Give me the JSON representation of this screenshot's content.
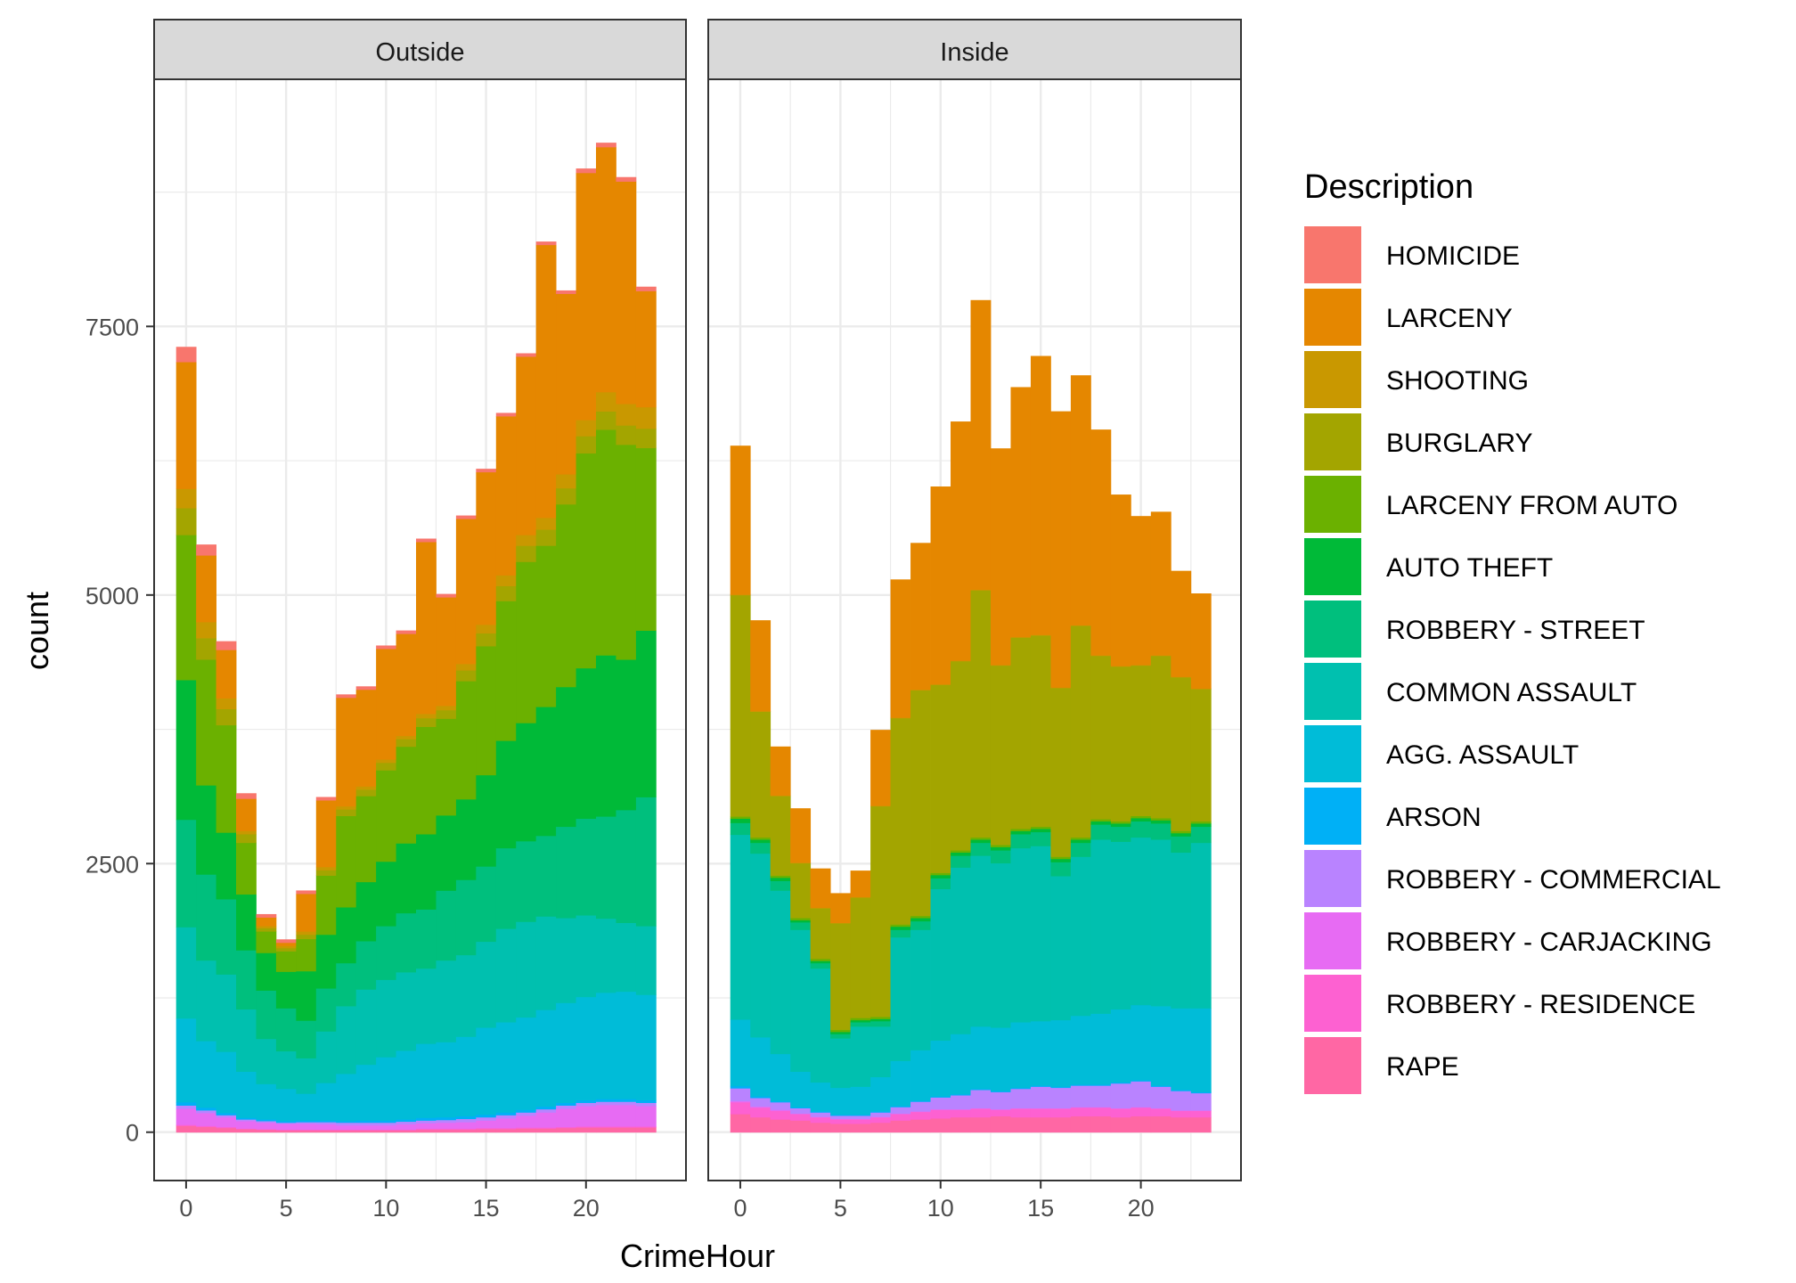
{
  "chart_data": {
    "type": "bar",
    "stacked": true,
    "facets": [
      "Outside",
      "Inside"
    ],
    "xlabel": "CrimeHour",
    "ylabel": "count",
    "x": [
      0,
      1,
      2,
      3,
      4,
      5,
      6,
      7,
      8,
      9,
      10,
      11,
      12,
      13,
      14,
      15,
      16,
      17,
      18,
      19,
      20,
      21,
      22,
      23
    ],
    "xlim": [
      -1.6,
      25.0
    ],
    "ylim": [
      -450,
      9800
    ],
    "x_ticks": [
      0,
      5,
      10,
      15,
      20
    ],
    "y_ticks": [
      0,
      2500,
      5000,
      7500
    ],
    "grid": true,
    "legend": {
      "title": "Description",
      "position": "right",
      "entries": [
        {
          "name": "HOMICIDE",
          "color": "#F8766D"
        },
        {
          "name": "LARCENY",
          "color": "#E58700"
        },
        {
          "name": "SHOOTING",
          "color": "#C99800"
        },
        {
          "name": "BURGLARY",
          "color": "#A3A500"
        },
        {
          "name": "LARCENY FROM AUTO",
          "color": "#6BB100"
        },
        {
          "name": "AUTO THEFT",
          "color": "#00BA38"
        },
        {
          "name": "ROBBERY - STREET",
          "color": "#00BF7D"
        },
        {
          "name": "COMMON ASSAULT",
          "color": "#00C0AF"
        },
        {
          "name": "AGG. ASSAULT",
          "color": "#00BCD8"
        },
        {
          "name": "ARSON",
          "color": "#00B0F6"
        },
        {
          "name": "ROBBERY - COMMERCIAL",
          "color": "#B983FF"
        },
        {
          "name": "ROBBERY - CARJACKING",
          "color": "#E76BF3"
        },
        {
          "name": "ROBBERY - RESIDENCE",
          "color": "#FD61D1"
        },
        {
          "name": "RAPE",
          "color": "#FF67A4"
        }
      ]
    },
    "panels": [
      {
        "name": "Outside",
        "series": {
          "RAPE": [
            60,
            50,
            40,
            30,
            25,
            20,
            20,
            20,
            20,
            20,
            20,
            20,
            25,
            25,
            25,
            30,
            30,
            35,
            35,
            40,
            45,
            45,
            45,
            45
          ],
          "ROBBERY - RESIDENCE": [
            10,
            10,
            10,
            5,
            5,
            5,
            5,
            5,
            5,
            5,
            5,
            5,
            10,
            10,
            10,
            10,
            10,
            10,
            10,
            10,
            10,
            10,
            10,
            10
          ],
          "ROBBERY - CARJACKING": [
            150,
            120,
            90,
            70,
            60,
            55,
            55,
            50,
            40,
            40,
            40,
            50,
            50,
            55,
            60,
            70,
            90,
            110,
            140,
            170,
            190,
            200,
            200,
            190
          ],
          "ROBBERY - COMMERCIAL": [
            30,
            25,
            20,
            15,
            15,
            10,
            15,
            20,
            25,
            25,
            25,
            25,
            25,
            25,
            30,
            30,
            30,
            30,
            30,
            30,
            30,
            30,
            30,
            30
          ],
          "ARSON": [
            30,
            25,
            20,
            15,
            15,
            15,
            15,
            15,
            15,
            20,
            20,
            20,
            25,
            25,
            25,
            25,
            25,
            25,
            25,
            25,
            25,
            25,
            25,
            25
          ],
          "AGG. ASSAULT": [
            780,
            620,
            570,
            430,
            330,
            300,
            250,
            350,
            440,
            520,
            590,
            640,
            690,
            700,
            740,
            810,
            840,
            860,
            900,
            930,
            960,
            990,
            1000,
            980
          ],
          "COMMON ASSAULT": [
            850,
            750,
            720,
            580,
            420,
            350,
            330,
            480,
            630,
            700,
            720,
            730,
            700,
            760,
            760,
            800,
            870,
            890,
            870,
            790,
            760,
            690,
            640,
            640
          ],
          "ROBBERY - STREET": [
            1000,
            800,
            700,
            550,
            450,
            400,
            350,
            400,
            400,
            450,
            500,
            550,
            550,
            650,
            700,
            700,
            750,
            750,
            750,
            850,
            900,
            950,
            1050,
            1200
          ],
          "AUTO THEFT": [
            1300,
            830,
            620,
            520,
            350,
            340,
            460,
            500,
            520,
            550,
            600,
            650,
            700,
            700,
            750,
            850,
            1000,
            1100,
            1200,
            1300,
            1400,
            1500,
            1400,
            1550
          ],
          "LARCENY FROM AUTO": [
            1350,
            1170,
            1000,
            480,
            200,
            190,
            300,
            550,
            850,
            800,
            850,
            900,
            1000,
            900,
            1100,
            1200,
            1300,
            1500,
            1500,
            1700,
            2000,
            2100,
            2000,
            1700
          ],
          "BURGLARY": [
            250,
            200,
            150,
            80,
            30,
            30,
            40,
            50,
            60,
            60,
            70,
            70,
            80,
            80,
            100,
            120,
            140,
            150,
            150,
            150,
            160,
            170,
            180,
            180
          ],
          "SHOOTING": [
            180,
            150,
            100,
            30,
            20,
            20,
            30,
            30,
            30,
            30,
            30,
            30,
            40,
            40,
            60,
            80,
            100,
            100,
            110,
            130,
            150,
            180,
            200,
            200
          ],
          "LARCENY": [
            1180,
            620,
            450,
            300,
            80,
            30,
            350,
            620,
            1010,
            900,
            1030,
            950,
            1600,
            1010,
            1350,
            1420,
            1480,
            1660,
            2540,
            1680,
            2300,
            2280,
            2070,
            1080
          ],
          "HOMICIDE": [
            140,
            100,
            80,
            50,
            30,
            30,
            30,
            30,
            30,
            30,
            30,
            30,
            30,
            30,
            30,
            30,
            30,
            30,
            30,
            30,
            40,
            40,
            40,
            40
          ]
        }
      },
      {
        "name": "Inside",
        "series": {
          "RAPE": [
            170,
            140,
            120,
            110,
            90,
            80,
            80,
            90,
            110,
            120,
            130,
            140,
            140,
            150,
            140,
            140,
            140,
            150,
            150,
            140,
            150,
            150,
            140,
            140
          ],
          "ROBBERY - RESIDENCE": [
            110,
            90,
            80,
            60,
            50,
            40,
            40,
            50,
            60,
            70,
            80,
            70,
            80,
            60,
            80,
            80,
            80,
            80,
            80,
            80,
            80,
            70,
            60,
            60
          ],
          "ROBBERY - CARJACKING": [
            10,
            10,
            10,
            5,
            5,
            5,
            5,
            5,
            5,
            5,
            5,
            5,
            5,
            5,
            5,
            5,
            5,
            5,
            5,
            5,
            5,
            5,
            5,
            5
          ],
          "ROBBERY - COMMERCIAL": [
            120,
            80,
            70,
            50,
            40,
            30,
            30,
            40,
            60,
            90,
            110,
            130,
            170,
            160,
            180,
            200,
            190,
            200,
            200,
            230,
            240,
            200,
            180,
            160
          ],
          "ARSON": [
            20,
            15,
            10,
            10,
            10,
            10,
            10,
            10,
            10,
            10,
            10,
            10,
            10,
            10,
            10,
            10,
            10,
            10,
            10,
            10,
            10,
            10,
            10,
            10
          ],
          "AGG. ASSAULT": [
            620,
            550,
            440,
            330,
            270,
            250,
            260,
            320,
            420,
            470,
            520,
            560,
            580,
            590,
            610,
            600,
            620,
            640,
            660,
            680,
            700,
            740,
            760,
            780
          ],
          "COMMON ASSAULT": [
            1720,
            1710,
            1520,
            1320,
            1060,
            460,
            560,
            470,
            1150,
            1120,
            1410,
            1550,
            1590,
            1530,
            1620,
            1630,
            1340,
            1480,
            1620,
            1560,
            1560,
            1550,
            1450,
            1540
          ],
          "ROBBERY - STREET": [
            110,
            100,
            90,
            70,
            50,
            40,
            40,
            50,
            70,
            80,
            100,
            110,
            120,
            120,
            130,
            130,
            130,
            130,
            140,
            140,
            150,
            150,
            150,
            150
          ],
          "AUTO THEFT": [
            40,
            30,
            30,
            20,
            20,
            20,
            20,
            20,
            30,
            30,
            30,
            30,
            30,
            30,
            30,
            30,
            30,
            30,
            30,
            30,
            30,
            30,
            30,
            30
          ],
          "LARCENY FROM AUTO": [
            20,
            20,
            20,
            20,
            20,
            20,
            20,
            20,
            20,
            20,
            20,
            20,
            20,
            20,
            20,
            20,
            20,
            20,
            20,
            20,
            20,
            20,
            20,
            20
          ],
          "BURGLARY": [
            2060,
            1170,
            740,
            510,
            470,
            990,
            1120,
            1960,
            1920,
            2100,
            1750,
            1760,
            2300,
            1670,
            1780,
            1780,
            1570,
            1970,
            1520,
            1440,
            1400,
            1510,
            1430,
            1230
          ],
          "SHOOTING": [
            5,
            5,
            5,
            5,
            5,
            5,
            5,
            5,
            5,
            5,
            5,
            5,
            5,
            5,
            5,
            5,
            5,
            5,
            5,
            5,
            5,
            5,
            5,
            5
          ],
          "LARCENY": [
            1385,
            845,
            455,
            505,
            365,
            275,
            245,
            705,
            1285,
            1365,
            1840,
            2225,
            2695,
            2015,
            2325,
            2595,
            2570,
            2325,
            2100,
            1595,
            1385,
            1335,
            985,
            885
          ],
          "HOMICIDE": [
            0,
            0,
            0,
            0,
            0,
            0,
            0,
            0,
            0,
            0,
            0,
            0,
            0,
            0,
            0,
            0,
            0,
            0,
            0,
            0,
            0,
            0,
            0,
            0
          ]
        }
      }
    ]
  }
}
